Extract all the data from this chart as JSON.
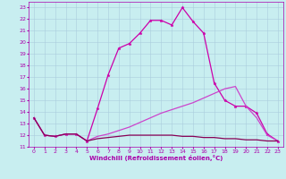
{
  "xlabel": "Windchill (Refroidissement éolien,°C)",
  "xlim": [
    -0.5,
    23.5
  ],
  "ylim": [
    11,
    23.5
  ],
  "xticks": [
    0,
    1,
    2,
    3,
    4,
    5,
    6,
    7,
    8,
    9,
    10,
    11,
    12,
    13,
    14,
    15,
    16,
    17,
    18,
    19,
    20,
    21,
    22,
    23
  ],
  "yticks": [
    11,
    12,
    13,
    14,
    15,
    16,
    17,
    18,
    19,
    20,
    21,
    22,
    23
  ],
  "background_color": "#c8eef0",
  "grid_color": "#aaccdd",
  "tick_color": "#aa00aa",
  "lines": [
    {
      "x": [
        0,
        1,
        2,
        3,
        4,
        5,
        6,
        7,
        8,
        9,
        10,
        11,
        12,
        13,
        14,
        15,
        16,
        17,
        18,
        19,
        20,
        21,
        22,
        23
      ],
      "y": [
        13.5,
        12.0,
        11.9,
        12.1,
        12.1,
        11.5,
        14.3,
        17.2,
        19.5,
        19.9,
        20.8,
        21.9,
        21.9,
        21.5,
        23.0,
        21.8,
        20.8,
        16.5,
        15.0,
        14.5,
        14.5,
        13.9,
        12.1,
        11.5
      ],
      "color": "#cc00aa",
      "marker": "*",
      "markersize": 2.5,
      "lw": 0.9
    },
    {
      "x": [
        0,
        1,
        2,
        3,
        4,
        5,
        6,
        7,
        8,
        9,
        10,
        11,
        12,
        13,
        14,
        15,
        16,
        17,
        18,
        19,
        20,
        21,
        22,
        23
      ],
      "y": [
        13.5,
        12.0,
        11.9,
        12.1,
        12.1,
        11.5,
        11.9,
        12.1,
        12.4,
        12.7,
        13.1,
        13.5,
        13.9,
        14.2,
        14.5,
        14.8,
        15.2,
        15.6,
        16.0,
        16.2,
        14.5,
        13.5,
        12.0,
        11.5
      ],
      "color": "#cc44cc",
      "marker": null,
      "markersize": 0,
      "lw": 0.9
    },
    {
      "x": [
        0,
        1,
        2,
        3,
        4,
        5,
        6,
        7,
        8,
        9,
        10,
        11,
        12,
        13,
        14,
        15,
        16,
        17,
        18,
        19,
        20,
        21,
        22,
        23
      ],
      "y": [
        13.5,
        12.0,
        11.9,
        12.1,
        12.1,
        11.5,
        11.7,
        11.8,
        11.9,
        12.0,
        12.0,
        12.0,
        12.0,
        12.0,
        11.9,
        11.9,
        11.8,
        11.8,
        11.7,
        11.7,
        11.6,
        11.6,
        11.5,
        11.5
      ],
      "color": "#880055",
      "marker": null,
      "markersize": 0,
      "lw": 0.9
    }
  ]
}
